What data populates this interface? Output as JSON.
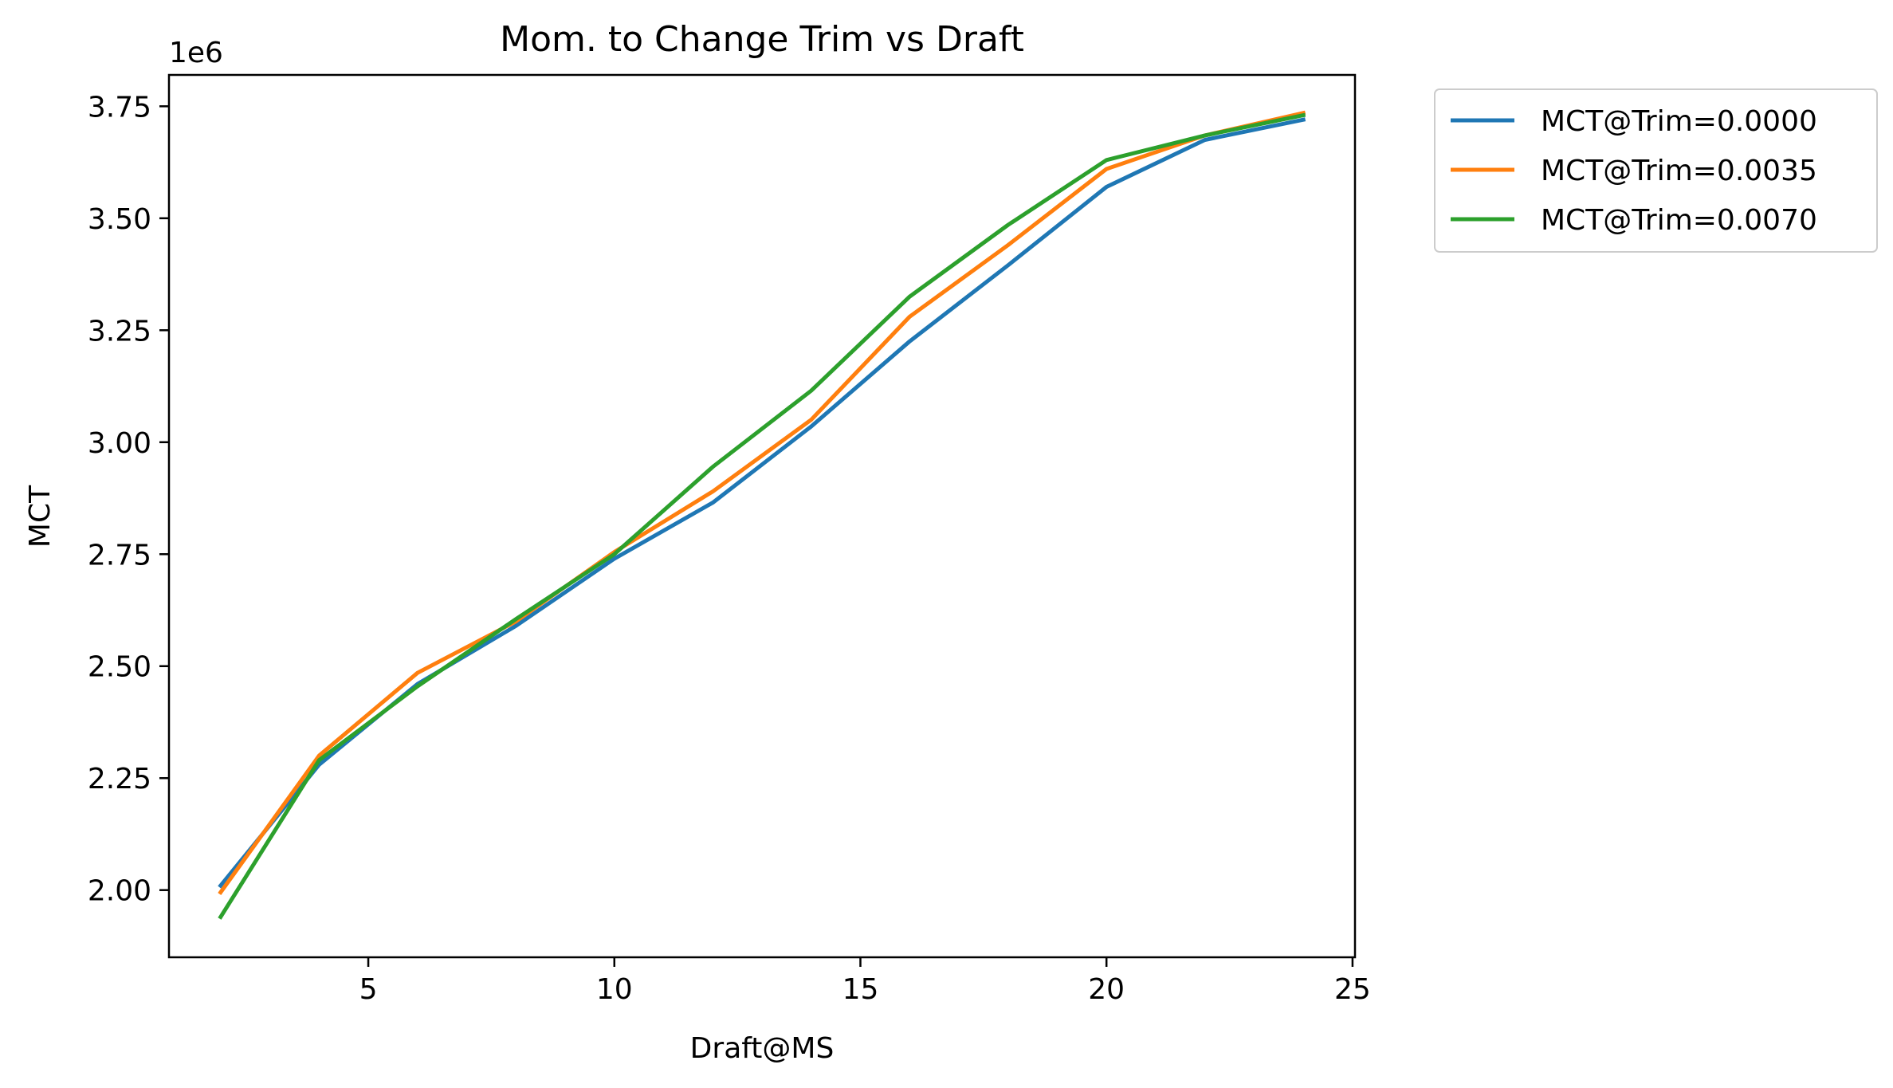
{
  "chart_data": {
    "type": "line",
    "title": "Mom. to Change Trim vs Draft",
    "xlabel": "Draft@MS",
    "ylabel": "MCT",
    "y_offset_label": "1e6",
    "xlim": [
      0.95,
      25.05
    ],
    "ylim": [
      1.85,
      3.82
    ],
    "y_scale_factor": 1000000,
    "xticks": [
      5,
      10,
      15,
      20,
      25
    ],
    "xtick_labels": [
      "5",
      "10",
      "15",
      "20",
      "25"
    ],
    "yticks": [
      2.0,
      2.25,
      2.5,
      2.75,
      3.0,
      3.25,
      3.5,
      3.75
    ],
    "ytick_labels": [
      "2.00",
      "2.25",
      "2.50",
      "2.75",
      "3.00",
      "3.25",
      "3.50",
      "3.75"
    ],
    "grid": false,
    "legend_position": "outside-top-right",
    "x": [
      2,
      4,
      6,
      8,
      10,
      12,
      14,
      16,
      18,
      20,
      22,
      24
    ],
    "series": [
      {
        "name": "MCT@Trim=0.0000",
        "color": "#1f77b4",
        "values": [
          2.01,
          2.28,
          2.46,
          2.59,
          2.74,
          2.865,
          3.035,
          3.225,
          3.395,
          3.57,
          3.675,
          3.72
        ]
      },
      {
        "name": "MCT@Trim=0.0035",
        "color": "#ff7f0e",
        "values": [
          1.995,
          2.3,
          2.485,
          2.6,
          2.755,
          2.89,
          3.05,
          3.28,
          3.44,
          3.61,
          3.685,
          3.735
        ]
      },
      {
        "name": "MCT@Trim=0.0070",
        "color": "#2ca02c",
        "values": [
          1.94,
          2.29,
          2.455,
          2.605,
          2.75,
          2.945,
          3.115,
          3.325,
          3.485,
          3.63,
          3.685,
          3.73
        ]
      }
    ]
  }
}
